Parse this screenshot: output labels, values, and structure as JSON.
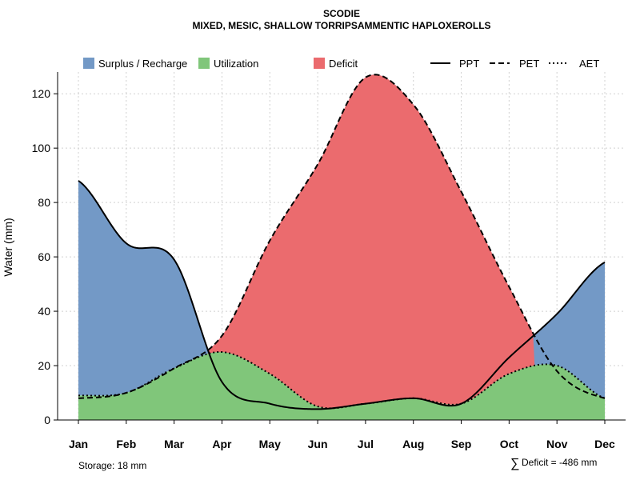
{
  "chart_data": {
    "type": "area",
    "title": "SCODIE",
    "subtitle": "MIXED, MESIC, SHALLOW TORRIPSAMMENTIC HAPLOXEROLLS",
    "ylabel": "Water (mm)",
    "xlabel": "",
    "ylim": [
      0,
      128
    ],
    "yticks": [
      0,
      20,
      40,
      60,
      80,
      100,
      120
    ],
    "grid": true,
    "legend_position": "top",
    "categories": [
      "Jan",
      "Feb",
      "Mar",
      "Apr",
      "May",
      "Jun",
      "Jul",
      "Aug",
      "Sep",
      "Oct",
      "Nov",
      "Dec"
    ],
    "series": [
      {
        "name": "PPT",
        "style": "solid",
        "values": [
          88,
          65,
          59,
          14,
          6,
          4,
          6,
          8,
          6,
          23,
          39,
          58
        ]
      },
      {
        "name": "PET",
        "style": "dashed",
        "values": [
          8,
          10,
          19,
          31,
          66,
          94,
          126,
          116,
          84,
          49,
          18,
          8
        ]
      },
      {
        "name": "AET",
        "style": "dotted",
        "values": [
          9,
          10,
          19,
          25,
          17,
          5,
          6,
          8,
          6,
          17,
          20,
          8
        ]
      }
    ],
    "legend": {
      "areas": [
        {
          "label": "Surplus / Recharge",
          "color": "#7399c6"
        },
        {
          "label": "Utilization",
          "color": "#80c67a"
        },
        {
          "label": "Deficit",
          "color": "#eb6b6e"
        }
      ],
      "lines": [
        {
          "label": "PPT",
          "style": "solid"
        },
        {
          "label": "PET",
          "style": "dashed"
        },
        {
          "label": "AET",
          "style": "dotted"
        }
      ]
    },
    "footer": {
      "storage": "Storage: 18 mm",
      "deficit_symbol": "∑",
      "deficit": "Deficit = -486 mm"
    }
  }
}
